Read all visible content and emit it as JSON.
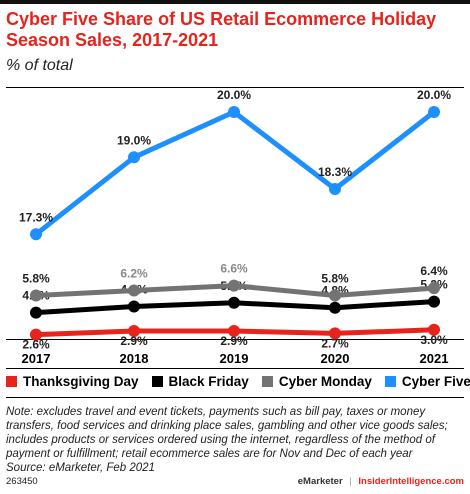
{
  "title": "Cyber Five Share of US Retail Ecommerce Holiday Season Sales, 2017-2021",
  "subtitle": "% of total",
  "note": "Note: excludes travel and event tickets, payments such as bill pay, taxes or money transfers, food services and drinking place sales, gambling and other vice goods sales; includes products or services ordered using the internet, regardless of the method of payment or fulfillment; retail ecommerce sales are for Nov and Dec of each year",
  "source": "Source: eMarketer, Feb 2021",
  "footer": {
    "chart_id": "263450",
    "brand_emarketer": "eMarketer",
    "separator": "|",
    "brand_ii": "InsiderIntelligence.com"
  },
  "colors": {
    "accent": "#e8231c",
    "thanksgiving": "#e8231c",
    "black_friday": "#000000",
    "cyber_monday": "#737373",
    "cyber_five": "#1e8fff",
    "label_gray": "#8a8a8a"
  },
  "chart_data": {
    "type": "line",
    "title": "Cyber Five Share of US Retail Ecommerce Holiday Season Sales, 2017-2021",
    "subtitle": "% of total",
    "xlabel": "",
    "ylabel": "",
    "x": [
      "2017",
      "2018",
      "2019",
      "2020",
      "2021"
    ],
    "legend_position": "bottom",
    "grid": false,
    "series": [
      {
        "name": "Thanksgiving Day",
        "color": "#e8231c",
        "values": [
          2.6,
          2.9,
          2.9,
          2.7,
          3.0
        ],
        "labels": [
          "2.6%",
          "2.9%",
          "2.9%",
          "2.7%",
          "3.0%"
        ]
      },
      {
        "name": "Black Friday",
        "color": "#000000",
        "values": [
          4.4,
          4.9,
          5.2,
          4.8,
          5.3
        ],
        "labels": [
          "4.4%",
          "4.9%",
          "5.2%",
          "4.8%",
          "5.3%"
        ]
      },
      {
        "name": "Cyber Monday",
        "color": "#737373",
        "values": [
          5.8,
          6.2,
          6.6,
          5.8,
          6.4
        ],
        "labels": [
          "5.8%",
          "6.2%",
          "6.6%",
          "5.8%",
          "6.4%"
        ]
      },
      {
        "name": "Cyber Five",
        "color": "#1e8fff",
        "values": [
          17.3,
          19.0,
          20.0,
          18.3,
          20.0
        ],
        "labels": [
          "17.3%",
          "19.0%",
          "20.0%",
          "18.3%",
          "20.0%"
        ]
      }
    ]
  }
}
